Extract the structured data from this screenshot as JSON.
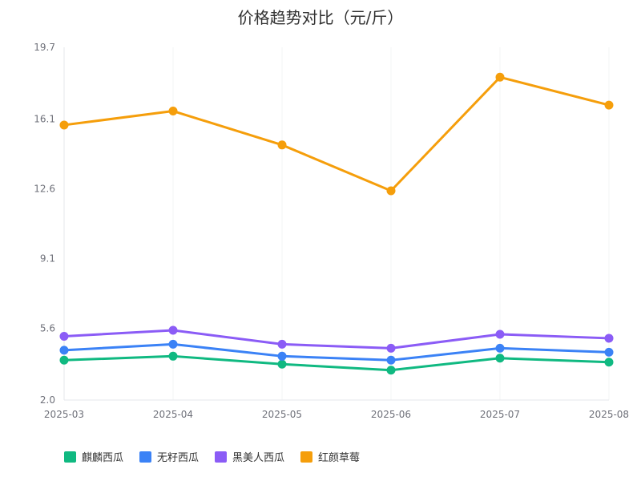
{
  "chart_data": {
    "type": "line",
    "title": "价格趋势对比（元/斤）",
    "categories": [
      "2025-03",
      "2025-04",
      "2025-05",
      "2025-06",
      "2025-07",
      "2025-08"
    ],
    "ylim": [
      2.0,
      19.7
    ],
    "yticks": [
      "2.0",
      "5.6",
      "9.1",
      "12.6",
      "16.1",
      "19.7"
    ],
    "grid": "vertical",
    "legend_position": "bottom-left",
    "series": [
      {
        "name": "麒麟西瓜",
        "color": "#10b981",
        "values": [
          4.0,
          4.2,
          3.8,
          3.5,
          4.1,
          3.9
        ]
      },
      {
        "name": "无籽西瓜",
        "color": "#3b82f6",
        "values": [
          4.5,
          4.8,
          4.2,
          4.0,
          4.6,
          4.4
        ]
      },
      {
        "name": "黑美人西瓜",
        "color": "#8b5cf6",
        "values": [
          5.2,
          5.5,
          4.8,
          4.6,
          5.3,
          5.1
        ]
      },
      {
        "name": "红颜草莓",
        "color": "#f59e0b",
        "values": [
          15.8,
          16.5,
          14.8,
          12.5,
          18.2,
          16.8
        ]
      }
    ]
  }
}
